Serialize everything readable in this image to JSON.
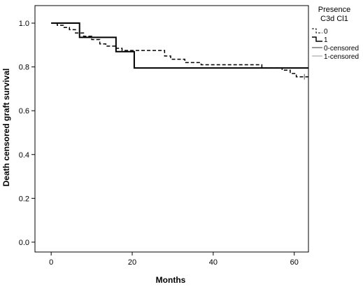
{
  "chart_data": {
    "type": "line",
    "xlabel": "Months",
    "ylabel": "Death censored graft survival",
    "xlim": [
      -4,
      63.5
    ],
    "ylim": [
      -0.045,
      1.08
    ],
    "x_ticks": [
      "0",
      "20",
      "40",
      "60"
    ],
    "x_tick_values": [
      0,
      20,
      40,
      60
    ],
    "y_ticks": [
      "0.0",
      "0.2",
      "0.4",
      "0.6",
      "0.8",
      "1.0"
    ],
    "y_tick_values": [
      0.0,
      0.2,
      0.4,
      0.6,
      0.8,
      1.0
    ],
    "grid": false,
    "legend": {
      "title_line1": "Presence",
      "title_line2": "C3d Cl1",
      "placement": "right",
      "entries": [
        "0",
        "1",
        "0-censored",
        "1-censored"
      ]
    },
    "series": [
      {
        "name": "0",
        "style": "dashed",
        "color": "#000000",
        "steps": [
          [
            0,
            1.0
          ],
          [
            1.5,
            0.99
          ],
          [
            3,
            0.98
          ],
          [
            4.5,
            0.97
          ],
          [
            6,
            0.955
          ],
          [
            8,
            0.94
          ],
          [
            10,
            0.925
          ],
          [
            12,
            0.905
          ],
          [
            13.5,
            0.895
          ],
          [
            16,
            0.885
          ],
          [
            17.5,
            0.875
          ],
          [
            28,
            0.85
          ],
          [
            29.5,
            0.835
          ],
          [
            33,
            0.82
          ],
          [
            37,
            0.81
          ],
          [
            52,
            0.795
          ],
          [
            57,
            0.785
          ],
          [
            59,
            0.77
          ],
          [
            60.5,
            0.755
          ],
          [
            63.5,
            0.755
          ]
        ]
      },
      {
        "name": "1",
        "style": "solid",
        "color": "#000000",
        "steps": [
          [
            0,
            1.0
          ],
          [
            7,
            0.935
          ],
          [
            16,
            0.87
          ],
          [
            20.5,
            0.795
          ],
          [
            63.5,
            0.795
          ]
        ]
      }
    ],
    "censored_series": [
      {
        "name": "0-censored",
        "color": "#555555",
        "x": [
          62.5
        ],
        "y": [
          0.755
        ]
      },
      {
        "name": "1-censored",
        "color": "#aaaaaa",
        "x": [],
        "y": []
      }
    ]
  }
}
